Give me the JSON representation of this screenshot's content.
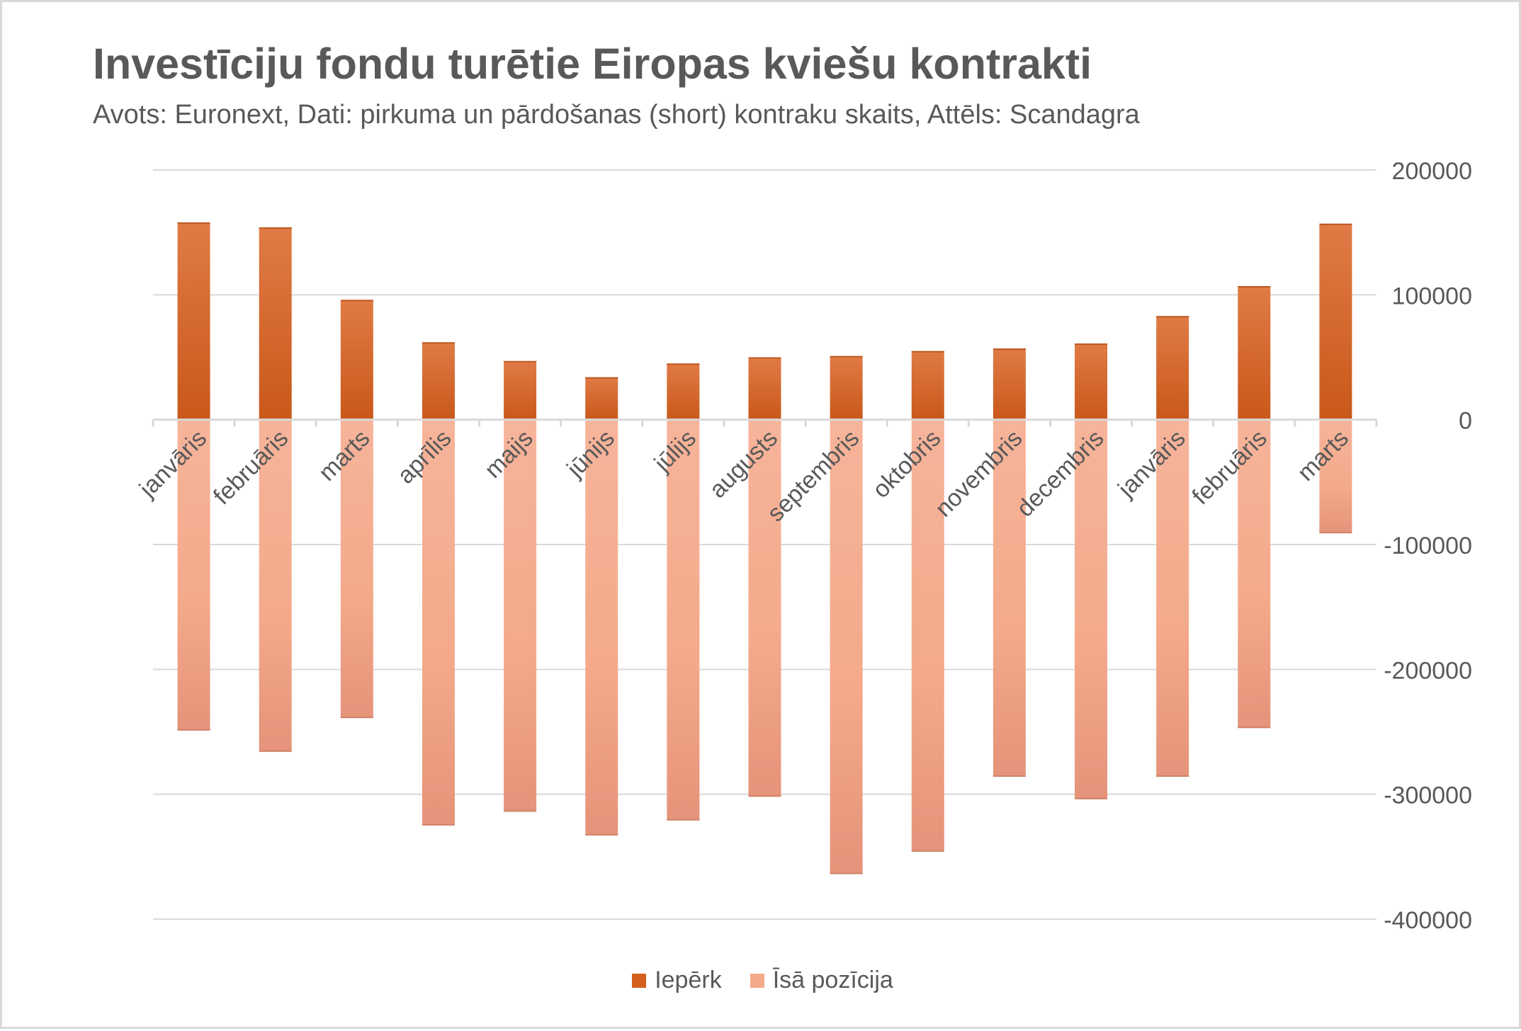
{
  "chart_data": {
    "type": "bar",
    "title": "Investīciju fondu turētie Eiropas kviešu kontrakti",
    "subtitle": "Avots: Euronext, Dati: pirkuma un pārdošanas (short) kontraku skaits, Attēls: Scandagra",
    "categories": [
      "janvāris",
      "februāris",
      "marts",
      "aprīlis",
      "maijs",
      "jūnijs",
      "jūlijs",
      "augusts",
      "septembris",
      "oktobris",
      "novembris",
      "decembris",
      "janvāris",
      "februāris",
      "marts"
    ],
    "series": [
      {
        "name": "Iepērk",
        "color": "#D2601A",
        "values": [
          158000,
          154000,
          96000,
          62000,
          47000,
          34000,
          45000,
          50000,
          51000,
          55000,
          57000,
          61000,
          83000,
          107000,
          157000
        ]
      },
      {
        "name": "Īsā pozīcija",
        "color": "#F4A98A",
        "values": [
          -249000,
          -266000,
          -239000,
          -325000,
          -314000,
          -333000,
          -321000,
          -302000,
          -364000,
          -346000,
          -286000,
          -304000,
          -286000,
          -247000,
          -91000
        ]
      }
    ],
    "y_ticks": [
      "200000",
      "100000",
      "0",
      "-100000",
      "-200000",
      "-300000",
      "-400000"
    ],
    "ylim": [
      -400000,
      200000
    ],
    "xlabel": "",
    "ylabel": "",
    "y_axis_position": "right",
    "grid": true,
    "legend_position": "bottom",
    "colors": {
      "text": "#595959",
      "grid": "#d9d9d9",
      "axis": "#d9d9d9"
    }
  }
}
